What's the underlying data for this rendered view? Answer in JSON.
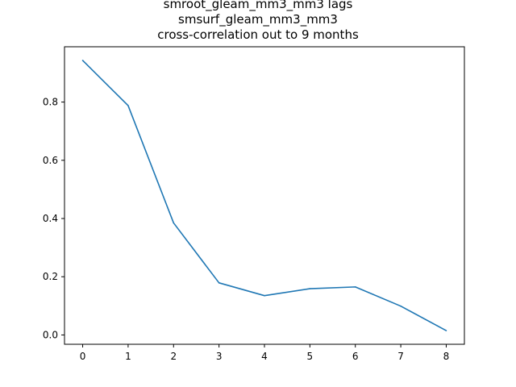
{
  "chart_data": {
    "type": "line",
    "title": [
      "smroot_gleam_mm3_mm3 lags",
      "smsurf_gleam_mm3_mm3",
      "cross-correlation out to 9 months"
    ],
    "xlabel": "",
    "ylabel": "",
    "x": [
      0,
      1,
      2,
      3,
      4,
      5,
      6,
      7,
      8
    ],
    "series": [
      {
        "values": [
          0.943,
          0.788,
          0.385,
          0.179,
          0.135,
          0.159,
          0.165,
          0.099,
          0.015
        ],
        "color": "#1f77b4"
      }
    ],
    "xlim": [
      -0.4,
      8.4
    ],
    "ylim": [
      -0.032,
      0.99
    ],
    "xticks": [
      0,
      1,
      2,
      3,
      4,
      5,
      6,
      7,
      8
    ],
    "xtick_labels": [
      "0",
      "1",
      "2",
      "3",
      "4",
      "5",
      "6",
      "7",
      "8"
    ],
    "yticks": [
      0.0,
      0.2,
      0.4,
      0.6,
      0.8
    ],
    "ytick_labels": [
      "0.0",
      "0.2",
      "0.4",
      "0.6",
      "0.8"
    ],
    "grid": false,
    "legend": "none"
  }
}
